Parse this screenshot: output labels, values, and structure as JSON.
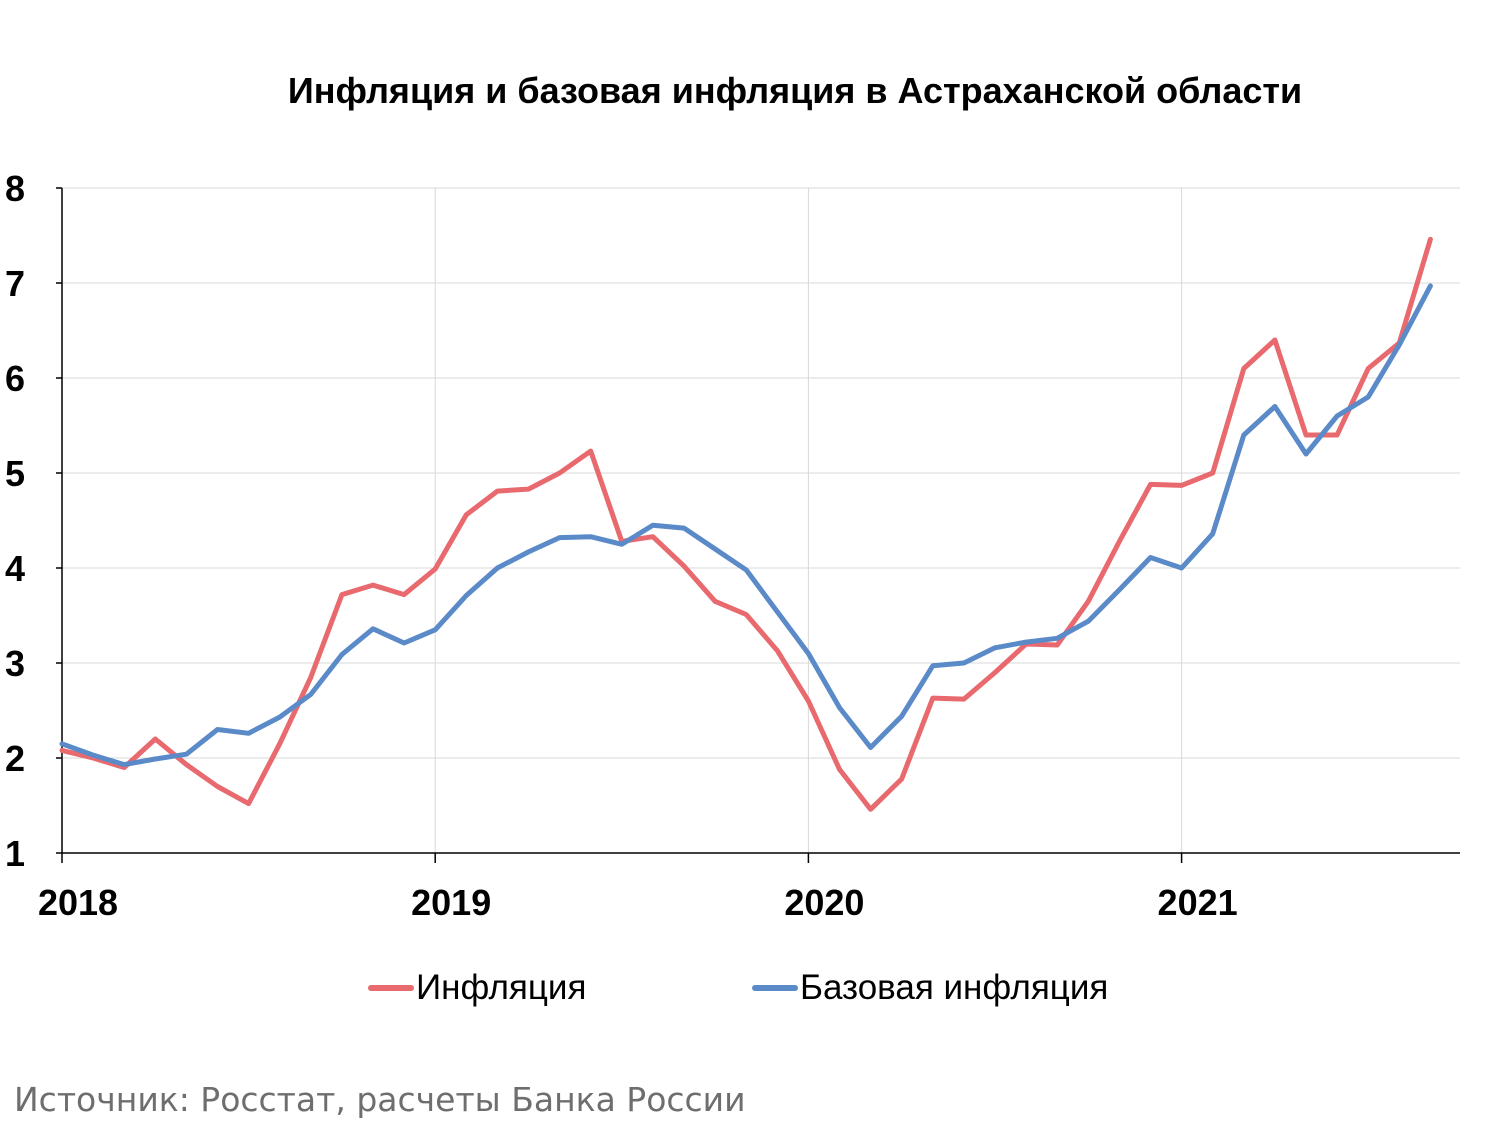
{
  "chart_data": {
    "type": "line",
    "title": "Инфляция и базовая инфляция в Астраханской области",
    "xlabel": "",
    "ylabel": "",
    "ylim": [
      1,
      8
    ],
    "yticks": [
      "1",
      "2",
      "3",
      "4",
      "5",
      "6",
      "7",
      "8"
    ],
    "xticks": [
      "2018",
      "2019",
      "2020",
      "2021"
    ],
    "grid": true,
    "legend_position": "bottom",
    "x_start": "2018-01",
    "series": [
      {
        "name": "Инфляция",
        "color": "#E8696E",
        "values": [
          2.08,
          2.0,
          1.9,
          2.2,
          1.93,
          1.7,
          1.52,
          2.15,
          2.85,
          3.72,
          3.82,
          3.72,
          3.99,
          4.56,
          4.81,
          4.83,
          5.0,
          5.23,
          4.28,
          4.33,
          4.02,
          3.65,
          3.51,
          3.13,
          2.6,
          1.88,
          1.46,
          1.78,
          2.63,
          2.62,
          2.9,
          3.2,
          3.19,
          3.65,
          4.28,
          4.88,
          4.87,
          5.0,
          6.1,
          6.4,
          5.4,
          5.4,
          6.1,
          6.37,
          7.46
        ]
      },
      {
        "name": "Базовая инфляция",
        "color": "#5B8AC8",
        "values": [
          2.15,
          2.03,
          1.93,
          1.99,
          2.04,
          2.3,
          2.26,
          2.43,
          2.67,
          3.09,
          3.36,
          3.21,
          3.35,
          3.71,
          4.0,
          4.17,
          4.32,
          4.33,
          4.25,
          4.45,
          4.42,
          4.2,
          3.98,
          3.54,
          3.1,
          2.53,
          2.11,
          2.44,
          2.97,
          3.0,
          3.16,
          3.22,
          3.26,
          3.44,
          3.77,
          4.11,
          4.0,
          4.36,
          5.4,
          5.7,
          5.2,
          5.6,
          5.8,
          6.35,
          6.97
        ]
      }
    ]
  },
  "legend": {
    "inflation": "Инфляция",
    "core_inflation": "Базовая инфляция"
  },
  "source_note": "Источник: Росстат, расчеты Банка России"
}
